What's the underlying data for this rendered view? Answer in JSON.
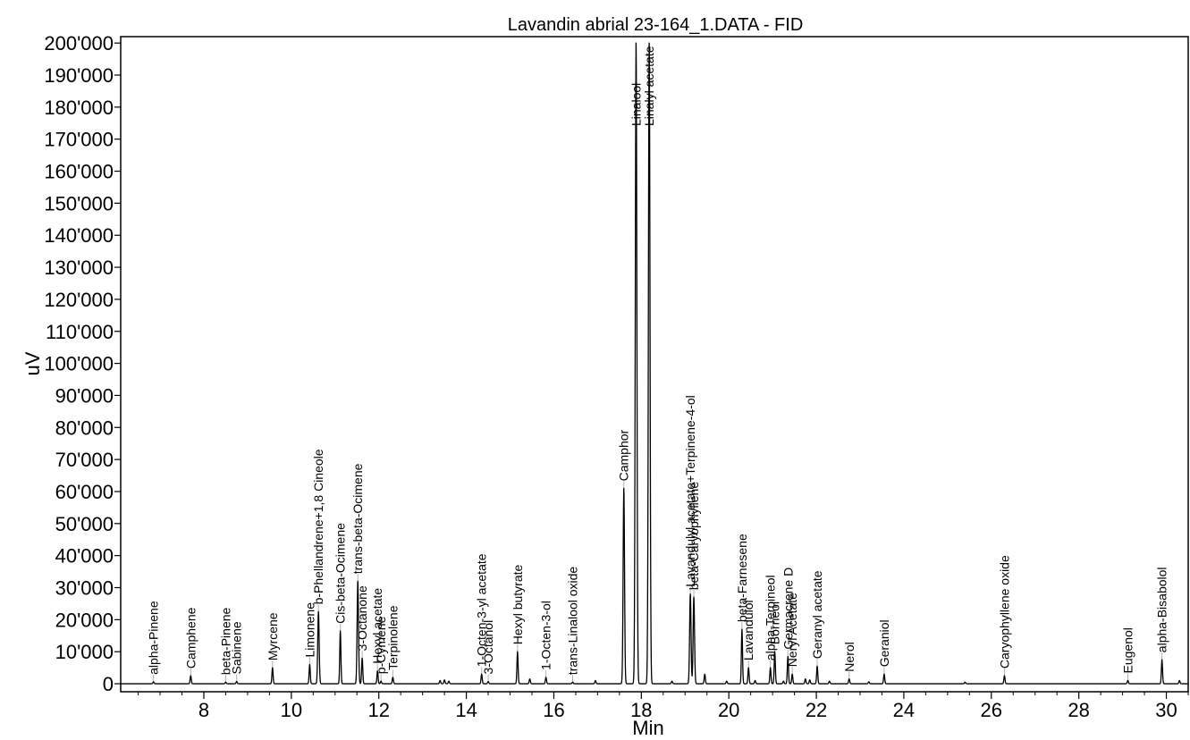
{
  "chart_data": {
    "type": "line",
    "title": "Lavandin abrial 23-164_1.DATA - FID",
    "xlabel": "Min",
    "ylabel": "uV",
    "xlim": [
      6.1,
      30.5
    ],
    "ylim": [
      -2500,
      202000
    ],
    "x_ticks": [
      "8",
      "10",
      "12",
      "14",
      "16",
      "18",
      "20",
      "22",
      "24",
      "26",
      "28",
      "30"
    ],
    "y_ticks": [
      "0",
      "10'000",
      "20'000",
      "30'000",
      "40'000",
      "50'000",
      "60'000",
      "70'000",
      "80'000",
      "90'000",
      "100'000",
      "110'000",
      "120'000",
      "130'000",
      "140'000",
      "150'000",
      "160'000",
      "170'000",
      "180'000",
      "190'000",
      "200'000"
    ],
    "grid": false,
    "series": [
      {
        "line_color": "#000000",
        "peaks": [
          {
            "name": "alpha-Pinene",
            "x": 6.85,
            "y": 600
          },
          {
            "name": "Camphene",
            "x": 7.7,
            "y": 2500
          },
          {
            "name": "beta-Pinene",
            "x": 8.5,
            "y": 500
          },
          {
            "name": "Sabinene",
            "x": 8.75,
            "y": 700
          },
          {
            "name": "Myrcene",
            "x": 9.57,
            "y": 5000
          },
          {
            "name": "Limonene",
            "x": 10.42,
            "y": 6000
          },
          {
            "name": "b-Phellandrene+1,8 Cineole",
            "x": 10.62,
            "y": 22500
          },
          {
            "name": "Cis-beta-Ocimene",
            "x": 11.12,
            "y": 16500
          },
          {
            "name": "trans-beta-Ocimene",
            "x": 11.52,
            "y": 32000
          },
          {
            "name": "3-Octanone",
            "x": 11.62,
            "y": 8000
          },
          {
            "name": "Hexyl acetate",
            "x": 11.97,
            "y": 4000
          },
          {
            "name": "p-Cymene",
            "x": 12.05,
            "y": 800
          },
          {
            "name": "Terpinolene",
            "x": 12.32,
            "y": 2000
          },
          {
            "name": "1-Octen-3-yl acetate",
            "x": 14.35,
            "y": 3000
          },
          {
            "name": "3-Octanol",
            "x": 14.5,
            "y": 700
          },
          {
            "name": "Hexyl butyrate",
            "x": 15.17,
            "y": 10000
          },
          {
            "name": "1-Octen-3-ol",
            "x": 15.82,
            "y": 2000
          },
          {
            "name": "trans-Linalool oxide",
            "x": 16.43,
            "y": 500
          },
          {
            "name": "Camphor",
            "x": 17.6,
            "y": 61000
          },
          {
            "name": "Linalool",
            "x": 17.88,
            "y": 200000
          },
          {
            "name": "Linalyl acetate",
            "x": 18.18,
            "y": 200000
          },
          {
            "name": "Lavandulyl acetate+Terpinene-4-ol",
            "x": 19.12,
            "y": 28000
          },
          {
            "name": "beta-Caryophyllene",
            "x": 19.2,
            "y": 27000
          },
          {
            "name": "beta-Farnesene",
            "x": 20.3,
            "y": 17000
          },
          {
            "name": "Lavandulol",
            "x": 20.45,
            "y": 5000
          },
          {
            "name": "alpha-Terpineol",
            "x": 20.95,
            "y": 5000
          },
          {
            "name": "Borneol",
            "x": 21.05,
            "y": 10000
          },
          {
            "name": "Germacrene D",
            "x": 21.35,
            "y": 8500
          },
          {
            "name": "Neryl Acetate",
            "x": 21.45,
            "y": 3000
          },
          {
            "name": "Geranyl acetate",
            "x": 22.02,
            "y": 5500
          },
          {
            "name": "Nerol",
            "x": 22.75,
            "y": 1500
          },
          {
            "name": "Geraniol",
            "x": 23.55,
            "y": 3000
          },
          {
            "name": "Caryophyllene oxide",
            "x": 26.3,
            "y": 2500
          },
          {
            "name": "Eugenol",
            "x": 29.12,
            "y": 1000
          },
          {
            "name": "alpha-Bisabolol",
            "x": 29.9,
            "y": 7500
          }
        ],
        "minor_peaks": [
          {
            "x": 13.4,
            "y": 1000
          },
          {
            "x": 13.5,
            "y": 1200
          },
          {
            "x": 13.6,
            "y": 800
          },
          {
            "x": 15.45,
            "y": 1500
          },
          {
            "x": 16.95,
            "y": 1000
          },
          {
            "x": 18.7,
            "y": 800
          },
          {
            "x": 19.45,
            "y": 3000
          },
          {
            "x": 19.95,
            "y": 800
          },
          {
            "x": 20.6,
            "y": 1000
          },
          {
            "x": 21.25,
            "y": 800
          },
          {
            "x": 21.75,
            "y": 1500
          },
          {
            "x": 21.85,
            "y": 1200
          },
          {
            "x": 22.3,
            "y": 800
          },
          {
            "x": 23.2,
            "y": 600
          },
          {
            "x": 25.4,
            "y": 500
          },
          {
            "x": 30.3,
            "y": 1000
          }
        ]
      }
    ]
  }
}
